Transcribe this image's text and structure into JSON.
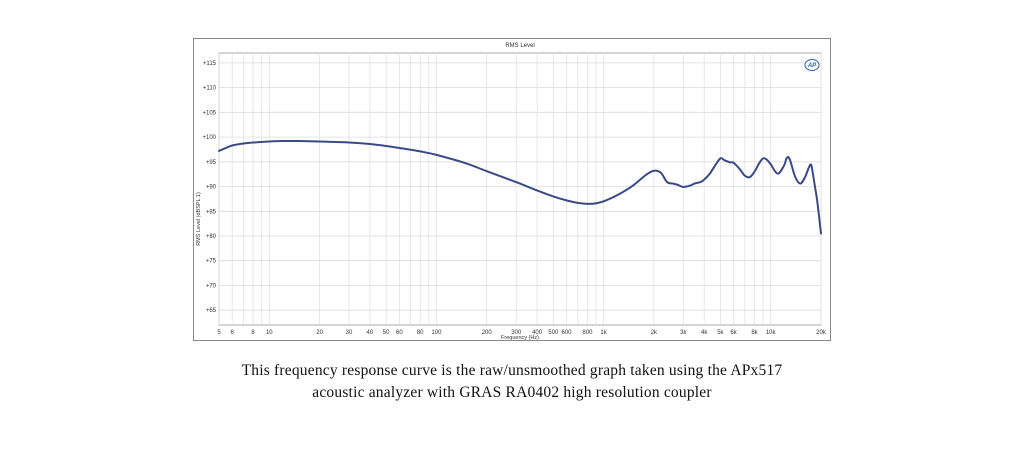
{
  "chart_data": {
    "type": "line",
    "title": "RMS Level",
    "xlabel": "Frequency (Hz)",
    "ylabel": "RMS Level (dBSPL 1)",
    "x_scale": "log",
    "xlim": [
      5,
      20000
    ],
    "ylim": [
      62,
      117
    ],
    "grid": true,
    "logo_text": "AP",
    "x_ticks": [
      {
        "value": 5,
        "label": "5"
      },
      {
        "value": 6,
        "label": "6"
      },
      {
        "value": 8,
        "label": "8"
      },
      {
        "value": 10,
        "label": "10"
      },
      {
        "value": 20,
        "label": "20"
      },
      {
        "value": 30,
        "label": "30"
      },
      {
        "value": 40,
        "label": "40"
      },
      {
        "value": 50,
        "label": "50"
      },
      {
        "value": 60,
        "label": "60"
      },
      {
        "value": 80,
        "label": "80"
      },
      {
        "value": 100,
        "label": "100"
      },
      {
        "value": 200,
        "label": "200"
      },
      {
        "value": 300,
        "label": "300"
      },
      {
        "value": 400,
        "label": "400"
      },
      {
        "value": 500,
        "label": "500"
      },
      {
        "value": 600,
        "label": "600"
      },
      {
        "value": 800,
        "label": "800"
      },
      {
        "value": 1000,
        "label": "1k"
      },
      {
        "value": 2000,
        "label": "2k"
      },
      {
        "value": 3000,
        "label": "3k"
      },
      {
        "value": 4000,
        "label": "4k"
      },
      {
        "value": 5000,
        "label": "5k"
      },
      {
        "value": 6000,
        "label": "6k"
      },
      {
        "value": 8000,
        "label": "8k"
      },
      {
        "value": 10000,
        "label": "10k"
      },
      {
        "value": 20000,
        "label": "20k"
      }
    ],
    "y_ticks": [
      {
        "value": 65,
        "label": "+65"
      },
      {
        "value": 70,
        "label": "+70"
      },
      {
        "value": 75,
        "label": "+75"
      },
      {
        "value": 80,
        "label": "+80"
      },
      {
        "value": 85,
        "label": "+85"
      },
      {
        "value": 90,
        "label": "+90"
      },
      {
        "value": 95,
        "label": "+95"
      },
      {
        "value": 100,
        "label": "+100"
      },
      {
        "value": 105,
        "label": "+105"
      },
      {
        "value": 110,
        "label": "+110"
      },
      {
        "value": 115,
        "label": "+115"
      }
    ],
    "series": [
      {
        "color": "#3b4a86",
        "points": [
          [
            5,
            97.2
          ],
          [
            5.5,
            97.8
          ],
          [
            6,
            98.3
          ],
          [
            7,
            98.7
          ],
          [
            8,
            98.9
          ],
          [
            10,
            99.1
          ],
          [
            12,
            99.2
          ],
          [
            15,
            99.2
          ],
          [
            20,
            99.1
          ],
          [
            25,
            99.0
          ],
          [
            30,
            98.9
          ],
          [
            40,
            98.6
          ],
          [
            50,
            98.2
          ],
          [
            60,
            97.8
          ],
          [
            80,
            97.1
          ],
          [
            100,
            96.4
          ],
          [
            150,
            94.7
          ],
          [
            200,
            93.1
          ],
          [
            300,
            90.9
          ],
          [
            400,
            89.2
          ],
          [
            500,
            88.0
          ],
          [
            600,
            87.2
          ],
          [
            700,
            86.7
          ],
          [
            800,
            86.5
          ],
          [
            900,
            86.6
          ],
          [
            1000,
            87.0
          ],
          [
            1200,
            88.2
          ],
          [
            1500,
            90.2
          ],
          [
            1800,
            92.4
          ],
          [
            2000,
            93.2
          ],
          [
            2200,
            92.8
          ],
          [
            2400,
            90.9
          ],
          [
            2600,
            90.6
          ],
          [
            2800,
            90.3
          ],
          [
            3000,
            89.9
          ],
          [
            3300,
            90.2
          ],
          [
            3500,
            90.6
          ],
          [
            3800,
            90.9
          ],
          [
            4000,
            91.4
          ],
          [
            4300,
            92.5
          ],
          [
            4600,
            94.0
          ],
          [
            5000,
            95.7
          ],
          [
            5300,
            95.3
          ],
          [
            5700,
            94.9
          ],
          [
            6000,
            94.8
          ],
          [
            6500,
            93.6
          ],
          [
            7000,
            92.2
          ],
          [
            7500,
            91.9
          ],
          [
            8000,
            93.0
          ],
          [
            8500,
            94.6
          ],
          [
            9000,
            95.7
          ],
          [
            9500,
            95.4
          ],
          [
            10000,
            94.5
          ],
          [
            11000,
            92.6
          ],
          [
            12000,
            94.2
          ],
          [
            12500,
            95.8
          ],
          [
            13000,
            95.5
          ],
          [
            14000,
            92.0
          ],
          [
            15000,
            90.6
          ],
          [
            16000,
            91.8
          ],
          [
            17000,
            94.0
          ],
          [
            17500,
            94.3
          ],
          [
            18000,
            92.0
          ],
          [
            18500,
            89.5
          ],
          [
            19000,
            87.0
          ],
          [
            20000,
            80.5
          ]
        ]
      }
    ]
  },
  "caption": {
    "line1": "This frequency response curve is the raw/unsmoothed graph taken using the APx517",
    "line2": "acoustic analyzer with GRAS RA0402 high resolution coupler"
  }
}
